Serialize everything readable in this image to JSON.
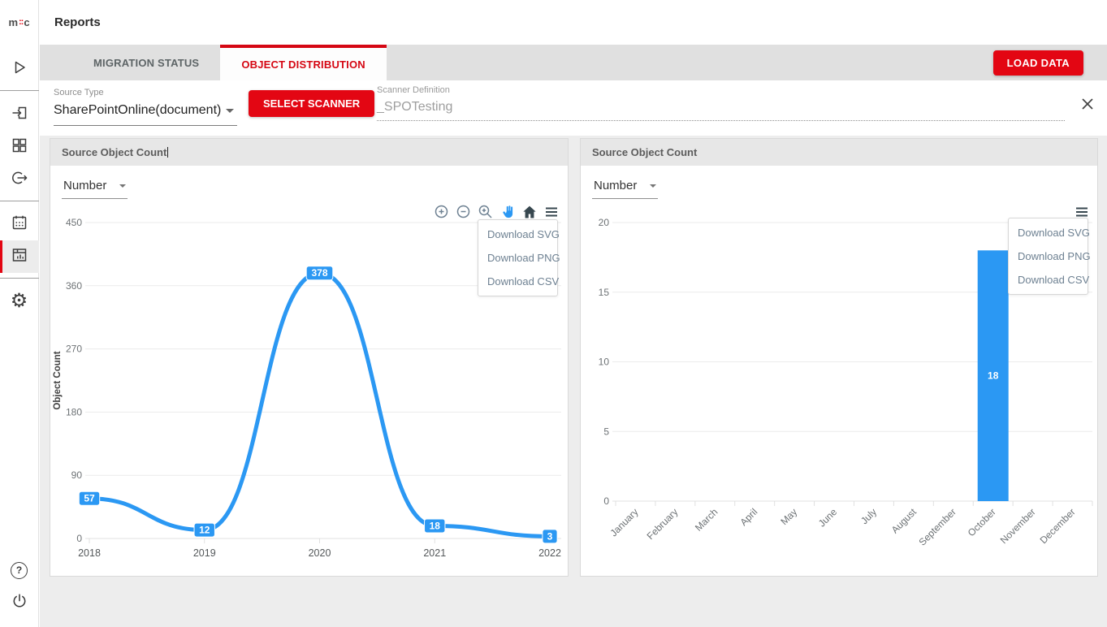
{
  "app": {
    "logo_left": "m",
    "logo_right": "c"
  },
  "header": {
    "title": "Reports"
  },
  "tabs": [
    {
      "label": "MIGRATION STATUS",
      "active": false
    },
    {
      "label": "OBJECT DISTRIBUTION",
      "active": true
    }
  ],
  "load_data_label": "LOAD DATA",
  "filters": {
    "source_type_label": "Source Type",
    "source_type_value": "SharePointOnline(document)",
    "select_scanner_label": "SELECT SCANNER",
    "scanner_definition_label": "Scanner Definition",
    "scanner_definition_value": "_SPOTesting"
  },
  "sidebar": {
    "items": [
      "run",
      "sign-in",
      "dashboard",
      "sign-out",
      "schedule",
      "reports",
      "settings"
    ],
    "active_item": "reports",
    "bottom_items": [
      "help",
      "power"
    ]
  },
  "panels": {
    "left": {
      "title": "Source Object Count",
      "metric": "Number",
      "toolbar": [
        "zoom-in",
        "zoom-out",
        "selection-zoom",
        "pan",
        "home",
        "menu"
      ],
      "menu": [
        "Download SVG",
        "Download PNG",
        "Download CSV"
      ],
      "menu_open": true
    },
    "right": {
      "title": "Source Object Count",
      "metric": "Number",
      "toolbar": [
        "menu"
      ],
      "menu": [
        "Download SVG",
        "Download PNG",
        "Download CSV"
      ],
      "menu_open": true
    }
  },
  "chart_data": [
    {
      "type": "line",
      "title": "Source Object Count",
      "categories": [
        "2018",
        "2019",
        "2020",
        "2021",
        "2022"
      ],
      "series": [
        {
          "name": "Object Count",
          "values": [
            57,
            12,
            378,
            18,
            3
          ]
        }
      ],
      "data_labels": [
        "57",
        "12",
        "378",
        "18",
        "3"
      ],
      "xlabel": "",
      "ylabel": "Object Count",
      "ylim": [
        0,
        450
      ],
      "yticks": [
        0,
        90,
        180,
        270,
        360,
        450
      ],
      "grid": true,
      "legend": "none",
      "smooth": true,
      "color": "#2b98f3"
    },
    {
      "type": "bar",
      "title": "Source Object Count",
      "categories": [
        "January",
        "February",
        "March",
        "April",
        "May",
        "June",
        "July",
        "August",
        "September",
        "October",
        "November",
        "December"
      ],
      "values": [
        0,
        0,
        0,
        0,
        0,
        0,
        0,
        0,
        0,
        18,
        0,
        0
      ],
      "data_labels": [
        "18"
      ],
      "xlabel": "",
      "ylabel": "",
      "ylim": [
        0,
        20
      ],
      "yticks": [
        0,
        5,
        10,
        15,
        20
      ],
      "grid": true,
      "legend": "none",
      "color": "#2b98f3"
    }
  ],
  "colors": {
    "accent_red": "#e30613",
    "chart_blue": "#2b98f3",
    "tab_bar_bg": "#e0e0e0",
    "panel_header_bg": "#e7e7e7",
    "content_bg": "#ededed"
  }
}
